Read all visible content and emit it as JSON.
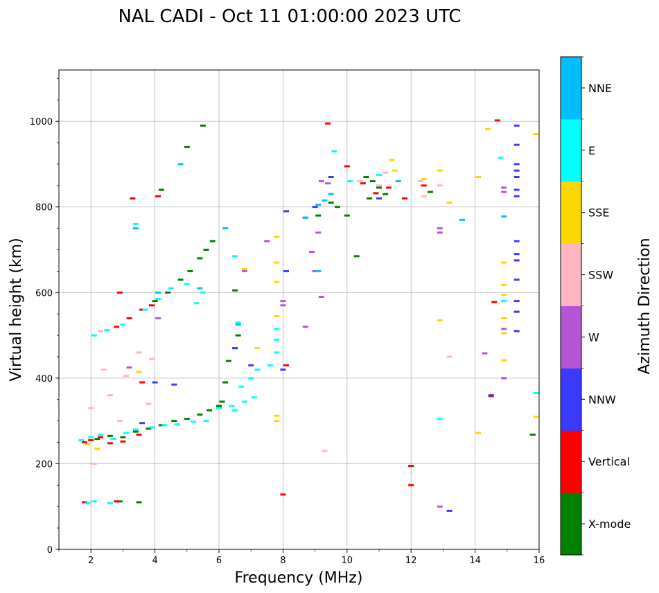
{
  "chart_data": {
    "type": "scatter",
    "title": "NAL CADI - Oct 11 01:00:00 2023 UTC",
    "xlabel": "Frequency (MHz)",
    "ylabel": "Virtual height (km)",
    "xlim": [
      1,
      16
    ],
    "ylim": [
      0,
      1120
    ],
    "xticks": [
      2,
      4,
      6,
      8,
      10,
      12,
      14,
      16
    ],
    "yticks": [
      0,
      200,
      400,
      600,
      800,
      1000
    ],
    "grid": true,
    "colorbar": {
      "label": "Azimuth Direction",
      "categories": [
        {
          "name": "X-mode",
          "color": "#008000"
        },
        {
          "name": "Vertical",
          "color": "#ff0000"
        },
        {
          "name": "NNW",
          "color": "#3a3aff"
        },
        {
          "name": "W",
          "color": "#b455d6"
        },
        {
          "name": "SSW",
          "color": "#ffb6c1"
        },
        {
          "name": "SSE",
          "color": "#ffd700"
        },
        {
          "name": "E",
          "color": "#00ffff"
        },
        {
          "name": "NNE",
          "color": "#00bfff"
        }
      ]
    },
    "series": [
      {
        "name": "X-mode",
        "points": [
          [
            2.2,
            258
          ],
          [
            2.6,
            265
          ],
          [
            3.0,
            262
          ],
          [
            3.4,
            275
          ],
          [
            3.8,
            282
          ],
          [
            4.2,
            290
          ],
          [
            4.6,
            300
          ],
          [
            5.0,
            305
          ],
          [
            5.4,
            315
          ],
          [
            5.7,
            325
          ],
          [
            6.0,
            335
          ],
          [
            6.1,
            345
          ],
          [
            6.2,
            390
          ],
          [
            6.3,
            440
          ],
          [
            6.5,
            470
          ],
          [
            6.6,
            500
          ],
          [
            4.0,
            580
          ],
          [
            4.4,
            600
          ],
          [
            4.8,
            630
          ],
          [
            5.1,
            650
          ],
          [
            5.4,
            680
          ],
          [
            5.6,
            700
          ],
          [
            5.8,
            720
          ],
          [
            6.5,
            605
          ],
          [
            5.5,
            990
          ],
          [
            5.0,
            940
          ],
          [
            4.2,
            840
          ],
          [
            10.0,
            780
          ],
          [
            10.3,
            685
          ],
          [
            10.6,
            870
          ],
          [
            10.8,
            860
          ],
          [
            11.0,
            845
          ],
          [
            11.2,
            830
          ],
          [
            10.7,
            820
          ],
          [
            12.6,
            835
          ],
          [
            15.8,
            268
          ],
          [
            9.1,
            780
          ],
          [
            9.7,
            800
          ],
          [
            9.5,
            810
          ],
          [
            3.5,
            110
          ],
          [
            2.9,
            112
          ]
        ]
      },
      {
        "name": "Vertical",
        "points": [
          [
            1.8,
            250
          ],
          [
            2.0,
            255
          ],
          [
            2.3,
            262
          ],
          [
            2.6,
            248
          ],
          [
            3.0,
            252
          ],
          [
            3.5,
            268
          ],
          [
            2.8,
            520
          ],
          [
            3.2,
            540
          ],
          [
            3.6,
            560
          ],
          [
            3.9,
            570
          ],
          [
            3.3,
            820
          ],
          [
            4.1,
            825
          ],
          [
            9.4,
            995
          ],
          [
            10.0,
            895
          ],
          [
            10.5,
            855
          ],
          [
            10.9,
            832
          ],
          [
            11.3,
            845
          ],
          [
            11.8,
            820
          ],
          [
            12.4,
            850
          ],
          [
            14.7,
            1002
          ],
          [
            14.6,
            578
          ],
          [
            14.5,
            358
          ],
          [
            12.0,
            195
          ],
          [
            12.0,
            150
          ],
          [
            8.0,
            128
          ],
          [
            8.1,
            430
          ],
          [
            1.8,
            110
          ],
          [
            2.8,
            112
          ],
          [
            3.6,
            390
          ],
          [
            2.9,
            600
          ]
        ]
      },
      {
        "name": "NNW",
        "points": [
          [
            3.6,
            295
          ],
          [
            4.0,
            390
          ],
          [
            4.6,
            385
          ],
          [
            6.5,
            470
          ],
          [
            7.0,
            430
          ],
          [
            8.0,
            420
          ],
          [
            8.1,
            650
          ],
          [
            8.1,
            790
          ],
          [
            8.7,
            775
          ],
          [
            9.0,
            800
          ],
          [
            9.5,
            870
          ],
          [
            15.3,
            990
          ],
          [
            15.3,
            945
          ],
          [
            15.3,
            900
          ],
          [
            15.3,
            885
          ],
          [
            15.3,
            870
          ],
          [
            15.3,
            840
          ],
          [
            15.3,
            825
          ],
          [
            15.3,
            720
          ],
          [
            15.3,
            690
          ],
          [
            15.3,
            675
          ],
          [
            15.3,
            630
          ],
          [
            15.3,
            580
          ],
          [
            15.3,
            555
          ],
          [
            15.3,
            510
          ],
          [
            13.2,
            90
          ],
          [
            14.5,
            360
          ],
          [
            11.0,
            820
          ]
        ]
      },
      {
        "name": "W",
        "points": [
          [
            3.2,
            425
          ],
          [
            4.1,
            540
          ],
          [
            8.0,
            580
          ],
          [
            8.7,
            520
          ],
          [
            9.0,
            650
          ],
          [
            9.2,
            590
          ],
          [
            9.1,
            740
          ],
          [
            8.9,
            695
          ],
          [
            9.4,
            855
          ],
          [
            9.2,
            860
          ],
          [
            12.9,
            750
          ],
          [
            12.9,
            740
          ],
          [
            12.9,
            100
          ],
          [
            14.3,
            458
          ],
          [
            14.9,
            845
          ],
          [
            14.9,
            835
          ],
          [
            14.9,
            515
          ],
          [
            14.9,
            400
          ],
          [
            6.8,
            650
          ],
          [
            7.5,
            720
          ],
          [
            8.0,
            570
          ]
        ]
      },
      {
        "name": "SSW",
        "points": [
          [
            2.0,
            330
          ],
          [
            2.4,
            420
          ],
          [
            2.6,
            360
          ],
          [
            2.9,
            300
          ],
          [
            3.1,
            405
          ],
          [
            3.5,
            460
          ],
          [
            3.9,
            445
          ],
          [
            3.8,
            340
          ],
          [
            2.1,
            200
          ],
          [
            9.3,
            230
          ],
          [
            11.2,
            880
          ],
          [
            12.3,
            860
          ],
          [
            12.4,
            825
          ],
          [
            12.9,
            850
          ],
          [
            13.2,
            450
          ],
          [
            11.0,
            850
          ],
          [
            10.4,
            860
          ],
          [
            2.3,
            510
          ]
        ]
      },
      {
        "name": "SSE",
        "points": [
          [
            1.9,
            245
          ],
          [
            2.2,
            235
          ],
          [
            3.5,
            415
          ],
          [
            7.2,
            470
          ],
          [
            7.8,
            730
          ],
          [
            7.8,
            670
          ],
          [
            7.8,
            625
          ],
          [
            7.8,
            545
          ],
          [
            7.8,
            312
          ],
          [
            7.8,
            300
          ],
          [
            11.4,
            910
          ],
          [
            11.5,
            885
          ],
          [
            12.4,
            865
          ],
          [
            12.9,
            885
          ],
          [
            13.2,
            810
          ],
          [
            14.1,
            870
          ],
          [
            14.4,
            982
          ],
          [
            14.1,
            272
          ],
          [
            14.9,
            670
          ],
          [
            14.9,
            618
          ],
          [
            14.9,
            595
          ],
          [
            14.9,
            540
          ],
          [
            14.9,
            505
          ],
          [
            14.9,
            442
          ],
          [
            15.9,
            970
          ],
          [
            15.9,
            310
          ],
          [
            12.9,
            535
          ],
          [
            6.8,
            655
          ]
        ]
      },
      {
        "name": "E",
        "points": [
          [
            1.7,
            255
          ],
          [
            2.0,
            262
          ],
          [
            2.3,
            268
          ],
          [
            2.7,
            258
          ],
          [
            3.1,
            272
          ],
          [
            3.4,
            280
          ],
          [
            3.9,
            285
          ],
          [
            4.3,
            290
          ],
          [
            4.7,
            292
          ],
          [
            5.2,
            298
          ],
          [
            5.6,
            300
          ],
          [
            6.0,
            330
          ],
          [
            6.4,
            335
          ],
          [
            6.8,
            345
          ],
          [
            7.1,
            355
          ],
          [
            6.5,
            325
          ],
          [
            6.7,
            380
          ],
          [
            7.0,
            400
          ],
          [
            7.2,
            420
          ],
          [
            7.8,
            515
          ],
          [
            7.8,
            490
          ],
          [
            7.8,
            460
          ],
          [
            2.1,
            500
          ],
          [
            2.5,
            512
          ],
          [
            3.0,
            525
          ],
          [
            3.7,
            560
          ],
          [
            4.1,
            585
          ],
          [
            4.5,
            610
          ],
          [
            5.0,
            620
          ],
          [
            5.5,
            600
          ],
          [
            5.3,
            575
          ],
          [
            6.6,
            530
          ],
          [
            6.5,
            685
          ],
          [
            7.6,
            430
          ],
          [
            10.1,
            860
          ],
          [
            11.0,
            875
          ],
          [
            12.9,
            305
          ],
          [
            14.8,
            915
          ],
          [
            14.9,
            580
          ],
          [
            15.9,
            365
          ],
          [
            2.1,
            112
          ],
          [
            2.6,
            108
          ],
          [
            1.9,
            108
          ],
          [
            9.6,
            930
          ],
          [
            3.4,
            760
          ]
        ]
      },
      {
        "name": "NNE",
        "points": [
          [
            3.4,
            750
          ],
          [
            6.2,
            750
          ],
          [
            6.6,
            525
          ],
          [
            4.1,
            600
          ],
          [
            5.4,
            610
          ],
          [
            8.7,
            775
          ],
          [
            9.1,
            805
          ],
          [
            9.3,
            815
          ],
          [
            9.1,
            650
          ],
          [
            14.9,
            778
          ],
          [
            11.6,
            860
          ],
          [
            13.6,
            770
          ],
          [
            4.8,
            900
          ],
          [
            9.5,
            830
          ]
        ]
      }
    ]
  }
}
